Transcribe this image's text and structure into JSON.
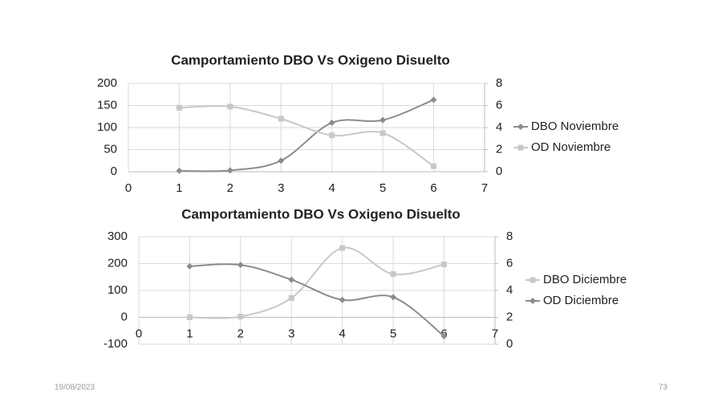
{
  "chart_data": [
    {
      "type": "line",
      "title": "Camportamiento DBO Vs Oxigeno Disuelto",
      "x": [
        1,
        2,
        3,
        4,
        5,
        6
      ],
      "xlim": [
        0,
        7
      ],
      "xticks": [
        0,
        1,
        2,
        3,
        4,
        5,
        6,
        7
      ],
      "ylim": [
        0,
        200
      ],
      "yticks": [
        0,
        50,
        100,
        150,
        200
      ],
      "y2lim": [
        0,
        8
      ],
      "y2ticks": [
        0,
        2,
        4,
        6,
        8
      ],
      "grid": true,
      "smooth": true,
      "series": [
        {
          "name": "DBO Noviembre",
          "color": "#8c8c8c",
          "marker": "diamond",
          "values": [
            2,
            3,
            25,
            111,
            117,
            163
          ]
        },
        {
          "name": "OD Noviembre",
          "color": "#c8c8c8",
          "marker": "square",
          "axis": "y2",
          "values": [
            5.8,
            5.9,
            4.8,
            3.3,
            3.5,
            0.5
          ]
        }
      ]
    },
    {
      "type": "line",
      "title": "Camportamiento DBO Vs Oxigeno Disuelto",
      "x": [
        1,
        2,
        3,
        4,
        5,
        6
      ],
      "xlim": [
        0,
        7
      ],
      "xticks": [
        0,
        1,
        2,
        3,
        4,
        5,
        6,
        7
      ],
      "ylim": [
        -100,
        300
      ],
      "yticks": [
        -100,
        0,
        100,
        200,
        300
      ],
      "y2lim": [
        0,
        8
      ],
      "y2ticks": [
        0,
        2,
        4,
        6,
        8
      ],
      "grid": true,
      "smooth": true,
      "series": [
        {
          "name": "DBO Diciembre",
          "color": "#c8c8c8",
          "marker": "square",
          "values": [
            0,
            3,
            72,
            258,
            161,
            197
          ]
        },
        {
          "name": "OD Diciembre",
          "color": "#8c8c8c",
          "marker": "diamond",
          "axis": "y2",
          "values": [
            5.8,
            5.9,
            4.8,
            3.3,
            3.5,
            0.6
          ]
        }
      ]
    }
  ],
  "footer": {
    "date": "19/08/2023",
    "page": "73"
  }
}
